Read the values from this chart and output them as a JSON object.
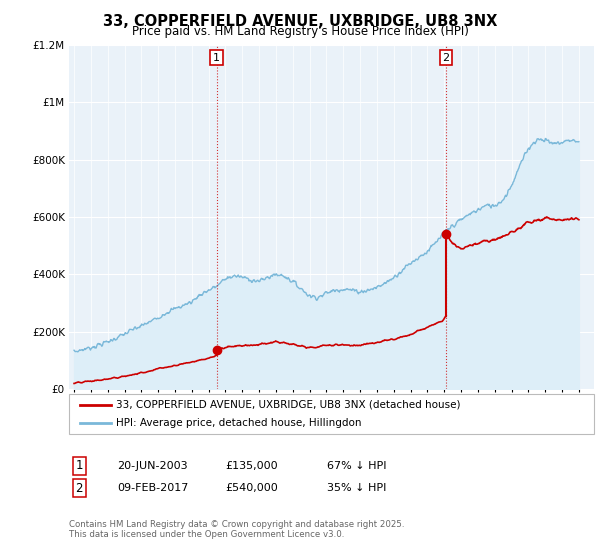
{
  "title": "33, COPPERFIELD AVENUE, UXBRIDGE, UB8 3NX",
  "subtitle": "Price paid vs. HM Land Registry's House Price Index (HPI)",
  "legend_line1": "33, COPPERFIELD AVENUE, UXBRIDGE, UB8 3NX (detached house)",
  "legend_line2": "HPI: Average price, detached house, Hillingdon",
  "footnote": "Contains HM Land Registry data © Crown copyright and database right 2025.\nThis data is licensed under the Open Government Licence v3.0.",
  "transaction1_date": "20-JUN-2003",
  "transaction1_price": 135000,
  "transaction1_pct": "67% ↓ HPI",
  "transaction2_date": "09-FEB-2017",
  "transaction2_price": 540000,
  "transaction2_pct": "35% ↓ HPI",
  "hpi_color": "#7ab8d9",
  "hpi_fill": "#ddeef8",
  "price_color": "#cc0000",
  "vline_color": "#cc0000",
  "background": "#eaf2f9",
  "ylim": [
    0,
    1200000
  ],
  "yticks": [
    0,
    200000,
    400000,
    600000,
    800000,
    1000000,
    1200000
  ],
  "xlim_start": 1994.7,
  "xlim_end": 2025.9,
  "hpi_x": [
    1995.0,
    1995.5,
    1996.0,
    1996.5,
    1997.0,
    1997.5,
    1998.0,
    1998.5,
    1999.0,
    1999.5,
    2000.0,
    2000.5,
    2001.0,
    2001.5,
    2002.0,
    2002.5,
    2003.0,
    2003.5,
    2004.0,
    2004.5,
    2005.0,
    2005.5,
    2006.0,
    2006.5,
    2007.0,
    2007.5,
    2008.0,
    2008.5,
    2009.0,
    2009.5,
    2010.0,
    2010.5,
    2011.0,
    2011.5,
    2012.0,
    2012.5,
    2013.0,
    2013.5,
    2014.0,
    2014.5,
    2015.0,
    2015.5,
    2016.0,
    2016.5,
    2017.0,
    2017.5,
    2018.0,
    2018.5,
    2019.0,
    2019.5,
    2020.0,
    2020.5,
    2021.0,
    2021.5,
    2022.0,
    2022.5,
    2023.0,
    2023.5,
    2024.0,
    2024.5,
    2025.0
  ],
  "hpi_y": [
    130000,
    138000,
    145000,
    155000,
    165000,
    178000,
    192000,
    208000,
    220000,
    235000,
    250000,
    268000,
    280000,
    292000,
    305000,
    330000,
    345000,
    360000,
    385000,
    395000,
    390000,
    382000,
    375000,
    390000,
    400000,
    395000,
    375000,
    350000,
    325000,
    320000,
    335000,
    345000,
    350000,
    345000,
    340000,
    345000,
    355000,
    370000,
    390000,
    415000,
    440000,
    460000,
    480000,
    510000,
    545000,
    570000,
    590000,
    610000,
    625000,
    640000,
    640000,
    660000,
    710000,
    780000,
    840000,
    870000,
    870000,
    855000,
    860000,
    870000,
    860000
  ],
  "price_x": [
    1995.0,
    1996.0,
    1997.0,
    1998.0,
    1999.0,
    2000.0,
    2001.0,
    2002.0,
    2003.0,
    2003.47,
    2003.47,
    2004.0,
    2005.0,
    2006.0,
    2007.0,
    2008.0,
    2009.0,
    2010.0,
    2011.0,
    2012.0,
    2013.0,
    2014.0,
    2015.0,
    2016.0,
    2016.9,
    2017.11,
    2017.11,
    2017.5,
    2018.0,
    2019.0,
    2020.0,
    2021.0,
    2022.0,
    2023.0,
    2024.0,
    2025.0
  ],
  "price_y": [
    20000,
    28000,
    35000,
    45000,
    57000,
    72000,
    83000,
    95000,
    108000,
    117000,
    135000,
    148000,
    153000,
    155000,
    165000,
    155000,
    143000,
    153000,
    155000,
    153000,
    162000,
    175000,
    192000,
    215000,
    240000,
    260000,
    540000,
    510000,
    490000,
    510000,
    520000,
    545000,
    580000,
    595000,
    590000,
    592000
  ],
  "t1_x": 2003.47,
  "t1_y": 135000,
  "t2_x": 2017.11,
  "t2_y": 540000
}
